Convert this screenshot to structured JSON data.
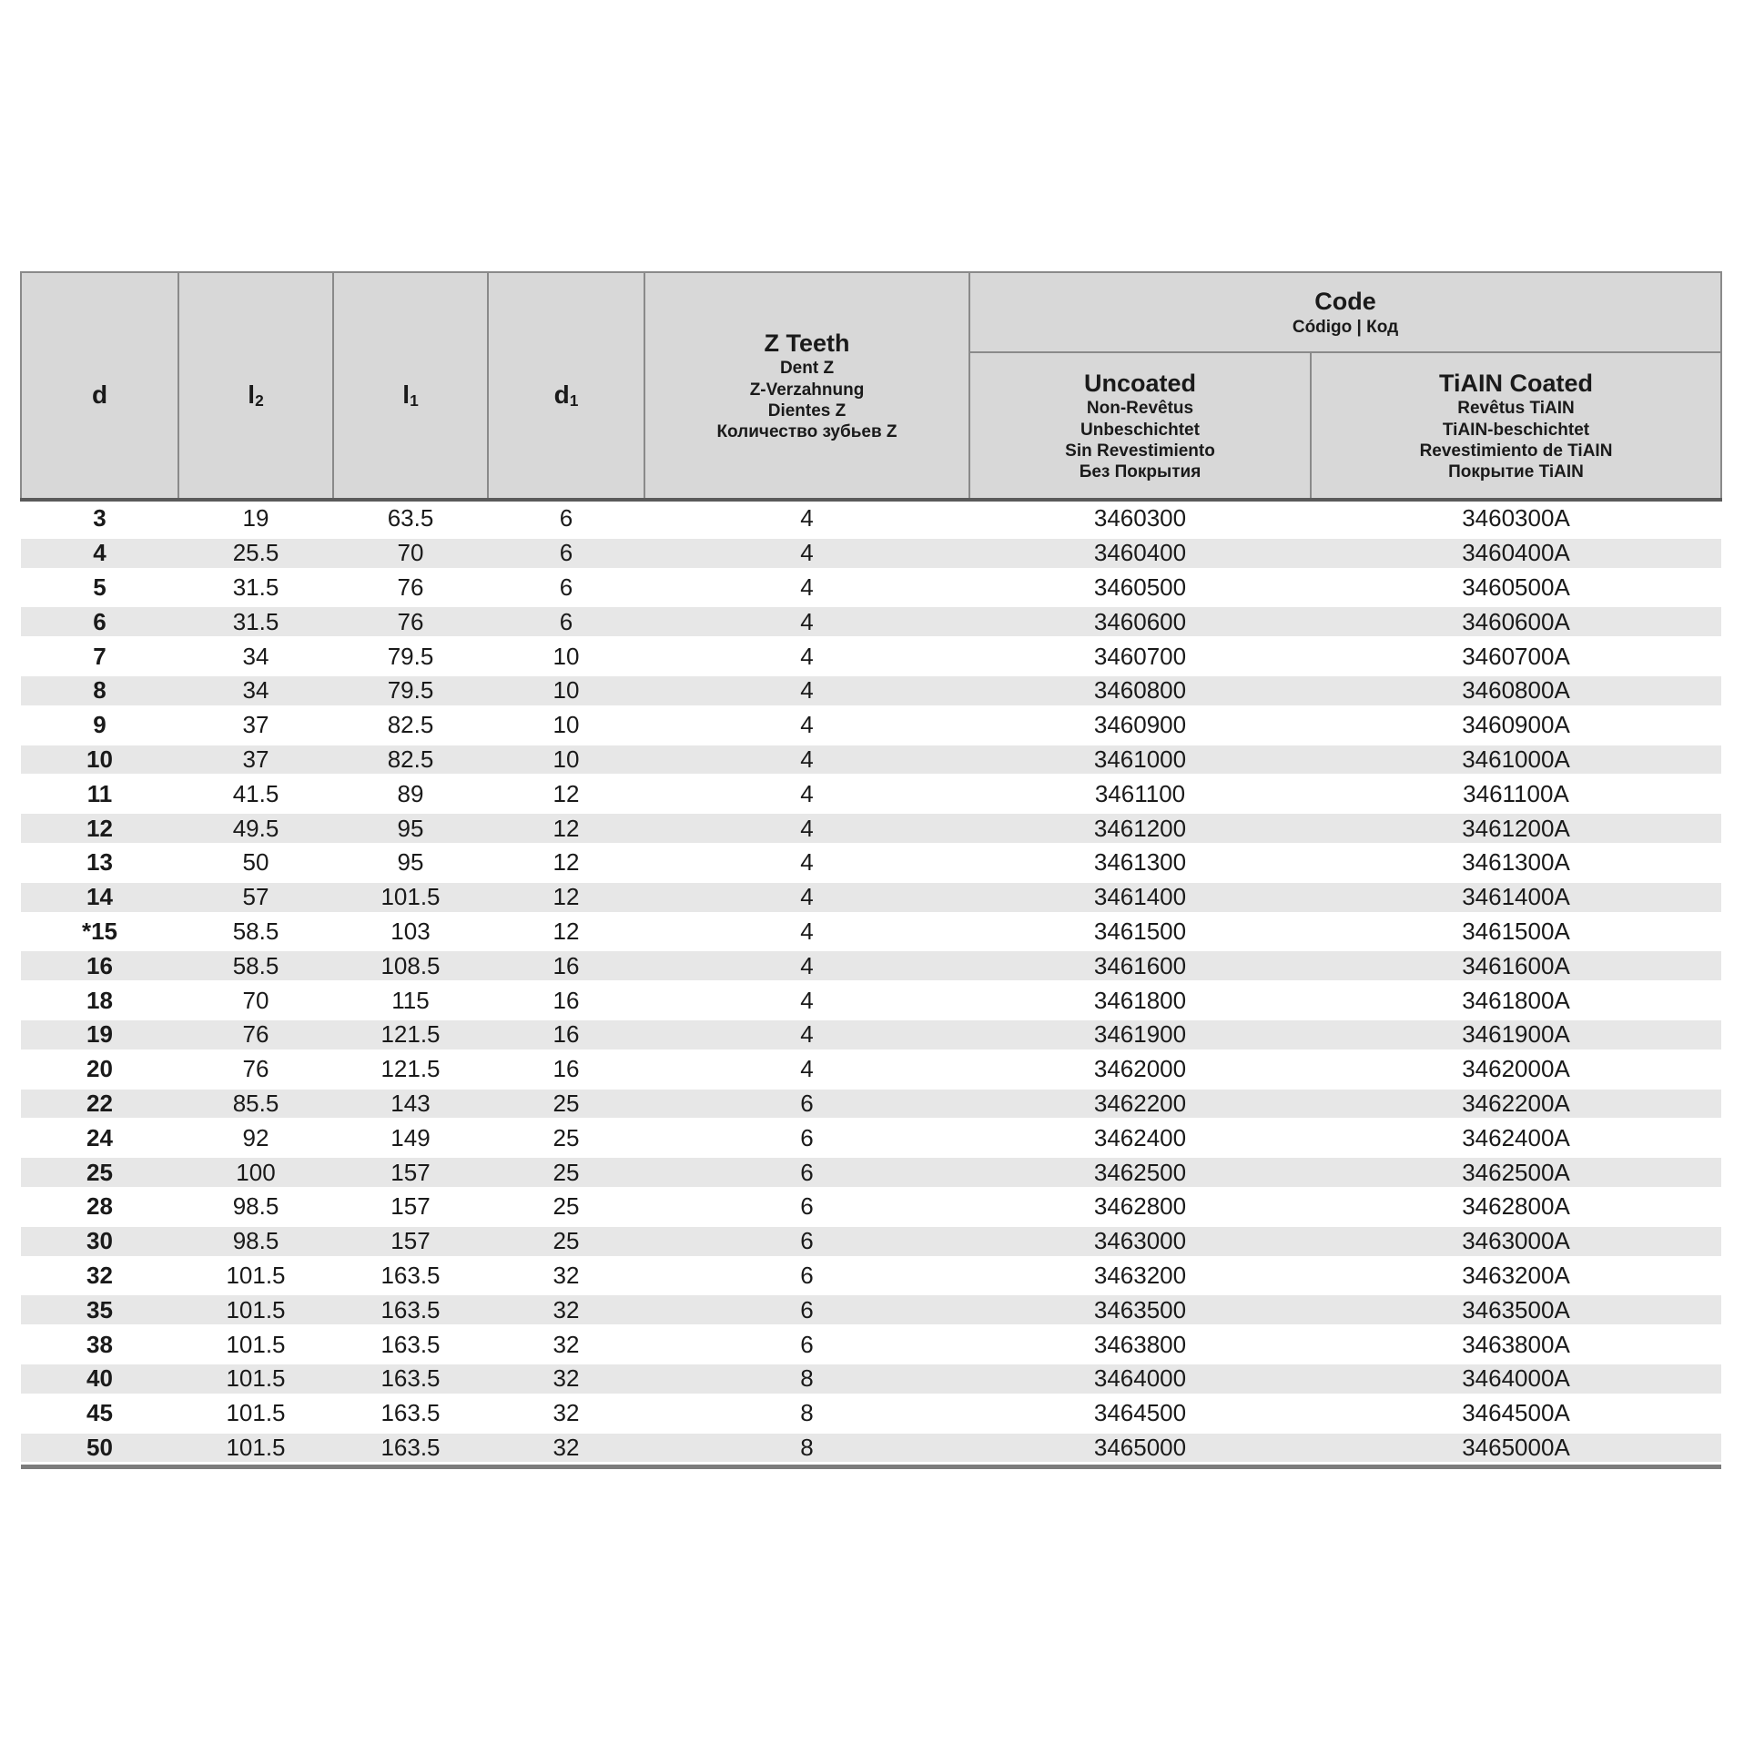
{
  "table": {
    "columns": {
      "d": {
        "base": "d",
        "sub": ""
      },
      "l2": {
        "base": "l",
        "sub": "2"
      },
      "l1": {
        "base": "l",
        "sub": "1"
      },
      "d1": {
        "base": "d",
        "sub": "1"
      },
      "z_teeth": {
        "title": "Z Teeth",
        "subtitles": [
          "Dent Z",
          "Z-Verzahnung",
          "Dientes Z",
          "Количество зубьев Z"
        ]
      },
      "code": {
        "title": "Code",
        "subtitle": "Código | Код"
      },
      "uncoated": {
        "title": "Uncoated",
        "subtitles": [
          "Non-Revêtus",
          "Unbeschichtet",
          "Sin Revestimiento",
          "Без Покрытия"
        ]
      },
      "tialn_coated": {
        "title": "TiAIN Coated",
        "subtitles": [
          "Revêtus TiAIN",
          "TiAIN-beschichtet",
          "Revestimiento de TiAIN",
          "Покрытие TiAIN"
        ]
      }
    },
    "rows": [
      [
        "3",
        "19",
        "63.5",
        "6",
        "4",
        "3460300",
        "3460300A"
      ],
      [
        "4",
        "25.5",
        "70",
        "6",
        "4",
        "3460400",
        "3460400A"
      ],
      [
        "5",
        "31.5",
        "76",
        "6",
        "4",
        "3460500",
        "3460500A"
      ],
      [
        "6",
        "31.5",
        "76",
        "6",
        "4",
        "3460600",
        "3460600A"
      ],
      [
        "7",
        "34",
        "79.5",
        "10",
        "4",
        "3460700",
        "3460700A"
      ],
      [
        "8",
        "34",
        "79.5",
        "10",
        "4",
        "3460800",
        "3460800A"
      ],
      [
        "9",
        "37",
        "82.5",
        "10",
        "4",
        "3460900",
        "3460900A"
      ],
      [
        "10",
        "37",
        "82.5",
        "10",
        "4",
        "3461000",
        "3461000A"
      ],
      [
        "11",
        "41.5",
        "89",
        "12",
        "4",
        "3461100",
        "3461100A"
      ],
      [
        "12",
        "49.5",
        "95",
        "12",
        "4",
        "3461200",
        "3461200A"
      ],
      [
        "13",
        "50",
        "95",
        "12",
        "4",
        "3461300",
        "3461300A"
      ],
      [
        "14",
        "57",
        "101.5",
        "12",
        "4",
        "3461400",
        "3461400A"
      ],
      [
        "*15",
        "58.5",
        "103",
        "12",
        "4",
        "3461500",
        "3461500A"
      ],
      [
        "16",
        "58.5",
        "108.5",
        "16",
        "4",
        "3461600",
        "3461600A"
      ],
      [
        "18",
        "70",
        "115",
        "16",
        "4",
        "3461800",
        "3461800A"
      ],
      [
        "19",
        "76",
        "121.5",
        "16",
        "4",
        "3461900",
        "3461900A"
      ],
      [
        "20",
        "76",
        "121.5",
        "16",
        "4",
        "3462000",
        "3462000A"
      ],
      [
        "22",
        "85.5",
        "143",
        "25",
        "6",
        "3462200",
        "3462200A"
      ],
      [
        "24",
        "92",
        "149",
        "25",
        "6",
        "3462400",
        "3462400A"
      ],
      [
        "25",
        "100",
        "157",
        "25",
        "6",
        "3462500",
        "3462500A"
      ],
      [
        "28",
        "98.5",
        "157",
        "25",
        "6",
        "3462800",
        "3462800A"
      ],
      [
        "30",
        "98.5",
        "157",
        "25",
        "6",
        "3463000",
        "3463000A"
      ],
      [
        "32",
        "101.5",
        "163.5",
        "32",
        "6",
        "3463200",
        "3463200A"
      ],
      [
        "35",
        "101.5",
        "163.5",
        "32",
        "6",
        "3463500",
        "3463500A"
      ],
      [
        "38",
        "101.5",
        "163.5",
        "32",
        "6",
        "3463800",
        "3463800A"
      ],
      [
        "40",
        "101.5",
        "163.5",
        "32",
        "8",
        "3464000",
        "3464000A"
      ],
      [
        "45",
        "101.5",
        "163.5",
        "32",
        "8",
        "3464500",
        "3464500A"
      ],
      [
        "50",
        "101.5",
        "163.5",
        "32",
        "8",
        "3465000",
        "3465000A"
      ]
    ]
  },
  "colors": {
    "header_bg": "#d8d8d8",
    "stripe_bg": "#e7e7e7",
    "border": "#8a8a8a",
    "border_dark": "#5a5a5a",
    "border_bottom": "#7c7c7c",
    "text": "#1a1a1a"
  }
}
